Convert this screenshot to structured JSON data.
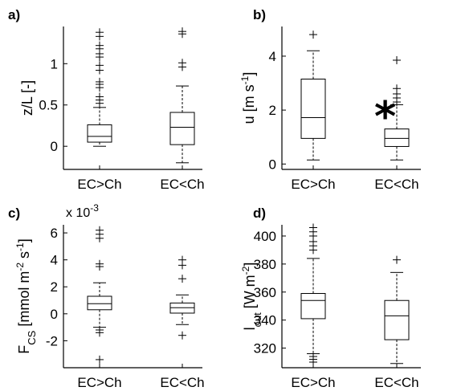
{
  "chart_data": [
    {
      "panel": "a)",
      "type": "box",
      "ylabel": "z/L [-]",
      "categories": [
        "EC>Ch",
        "EC<Ch"
      ],
      "ylim": [
        -0.28,
        1.45
      ],
      "yticks": [
        0,
        0.5,
        1
      ],
      "ytick_labels": [
        "0",
        "0.5",
        "1"
      ],
      "boxes": [
        {
          "whisker_low": 0.0,
          "q1": 0.05,
          "median": 0.12,
          "q3": 0.26,
          "whisker_high": 0.47,
          "outliers": [
            1.38,
            1.33,
            1.22,
            1.18,
            1.12,
            1.08,
            0.98,
            0.92,
            0.78,
            0.75,
            0.71,
            0.6,
            0.56,
            0.52
          ]
        },
        {
          "whisker_low": -0.2,
          "q1": 0.02,
          "median": 0.23,
          "q3": 0.41,
          "whisker_high": 0.73,
          "outliers": [
            1.39,
            1.36,
            1.01,
            0.96
          ]
        }
      ]
    },
    {
      "panel": "b)",
      "type": "box",
      "ylabel": "u [m s⁻¹]",
      "ylabel_main": "u [m s",
      "ylabel_sup": "-1",
      "ylabel_end": "]",
      "categories": [
        "EC>Ch",
        "EC<Ch"
      ],
      "ylim": [
        -0.2,
        5.1
      ],
      "yticks": [
        0,
        2,
        4
      ],
      "ytick_labels": [
        "0",
        "2",
        "4"
      ],
      "annotation": "*",
      "boxes": [
        {
          "whisker_low": 0.15,
          "q1": 0.95,
          "median": 1.72,
          "q3": 3.15,
          "whisker_high": 4.2,
          "outliers": [
            4.8
          ]
        },
        {
          "whisker_low": 0.15,
          "q1": 0.65,
          "median": 0.95,
          "q3": 1.3,
          "whisker_high": 2.2,
          "outliers": [
            3.85,
            2.8,
            2.6,
            2.45,
            2.3
          ]
        }
      ]
    },
    {
      "panel": "c)",
      "type": "box",
      "ylabel": "F_CS [mmol m⁻² s⁻¹]",
      "ylabel_main": "F",
      "ylabel_sub": "CS",
      "ylabel_rest": " [mmol m",
      "ylabel_sup1": "-2",
      "ylabel_mid": " s",
      "ylabel_sup2": "-1",
      "ylabel_end": "]",
      "exponent_label": "x 10",
      "exponent_power": "-3",
      "categories": [
        "EC>Ch",
        "EC<Ch"
      ],
      "ylim": [
        -4.0,
        6.6
      ],
      "yticks": [
        -2,
        0,
        2,
        4,
        6
      ],
      "ytick_labels": [
        "-2",
        "0",
        "2",
        "4",
        "6"
      ],
      "boxes": [
        {
          "whisker_low": -1.0,
          "q1": 0.3,
          "median": 0.75,
          "q3": 1.3,
          "whisker_high": 2.3,
          "outliers": [
            6.2,
            5.9,
            5.6,
            3.7,
            3.5,
            -1.2,
            -1.4,
            -3.4
          ]
        },
        {
          "whisker_low": -0.8,
          "q1": 0.05,
          "median": 0.45,
          "q3": 0.8,
          "whisker_high": 1.4,
          "outliers": [
            4.0,
            3.6,
            2.6,
            -1.6
          ]
        }
      ]
    },
    {
      "panel": "d)",
      "type": "box",
      "ylabel": "l_out [W m⁻²]",
      "ylabel_main": "l",
      "ylabel_sub": "out",
      "ylabel_rest": " [W m",
      "ylabel_sup": "-2",
      "ylabel_end": "]",
      "categories": [
        "EC>Ch",
        "EC<Ch"
      ],
      "ylim": [
        306,
        408
      ],
      "yticks": [
        320,
        340,
        360,
        380,
        400
      ],
      "ytick_labels": [
        "320",
        "340",
        "360",
        "380",
        "400"
      ],
      "boxes": [
        {
          "whisker_low": 316,
          "q1": 341,
          "median": 354,
          "q3": 359,
          "whisker_high": 384,
          "outliers": [
            406,
            403,
            400,
            396,
            393,
            390,
            314,
            312,
            310
          ]
        },
        {
          "whisker_low": 309,
          "q1": 326,
          "median": 343,
          "q3": 354,
          "whisker_high": 374,
          "outliers": [
            383
          ]
        }
      ]
    }
  ]
}
